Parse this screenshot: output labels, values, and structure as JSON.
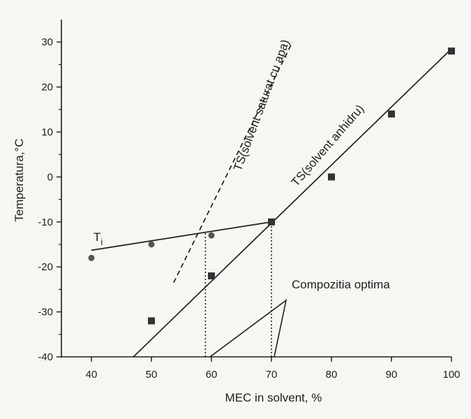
{
  "colors": {
    "ink": "#1e1e1e",
    "marker_dark": "#333333",
    "marker_circle": "#555555",
    "background": "#f7f6f2"
  },
  "chart_data": {
    "type": "scatter",
    "title": "",
    "xlabel": "MEC in solvent, %",
    "ylabel": "Temperatura,°C",
    "xlim": [
      35,
      100
    ],
    "ylim": [
      -40,
      35
    ],
    "x_ticks": [
      40,
      50,
      60,
      70,
      80,
      90,
      100
    ],
    "y_ticks": [
      -40,
      -30,
      -20,
      -10,
      0,
      10,
      20,
      30
    ],
    "grid": false,
    "legend": "none",
    "series": [
      {
        "label_ref": "ti",
        "marker": "circle",
        "points": [
          [
            40,
            -18
          ],
          [
            50,
            -15
          ],
          [
            60,
            -13
          ],
          [
            70,
            -10
          ]
        ]
      },
      {
        "label_ref": "ts_anhidru",
        "marker": "square",
        "points": [
          [
            50,
            -32
          ],
          [
            60,
            -22
          ],
          [
            70,
            -10
          ],
          [
            80,
            0
          ],
          [
            90,
            14
          ],
          [
            100,
            28
          ]
        ]
      }
    ],
    "lines": [
      {
        "label_ref": "ti",
        "style": "solid",
        "from": [
          40,
          -16.3
        ],
        "to": [
          70,
          -10
        ]
      },
      {
        "label_ref": "ts_anhidru",
        "style": "solid",
        "from": [
          47,
          -40
        ],
        "to": [
          100,
          28.5
        ]
      },
      {
        "label_ref": "ts_saturat",
        "style": "dashed",
        "from": [
          53.7,
          -23.5
        ],
        "to": [
          73.5,
          30
        ]
      }
    ],
    "guides": [
      {
        "style": "dotted",
        "from": [
          59,
          -40
        ],
        "to": [
          59,
          -12.2
        ]
      },
      {
        "style": "dotted",
        "from": [
          70,
          -40
        ],
        "to": [
          70,
          -10
        ]
      }
    ],
    "labels": {
      "ti": "T",
      "ti_sub": "i",
      "ts_anhidru": "TS(solvent anhidru)",
      "ts_saturat": "TS(solvent saturat cu apa)",
      "optimum": "Compozitia optima"
    }
  }
}
